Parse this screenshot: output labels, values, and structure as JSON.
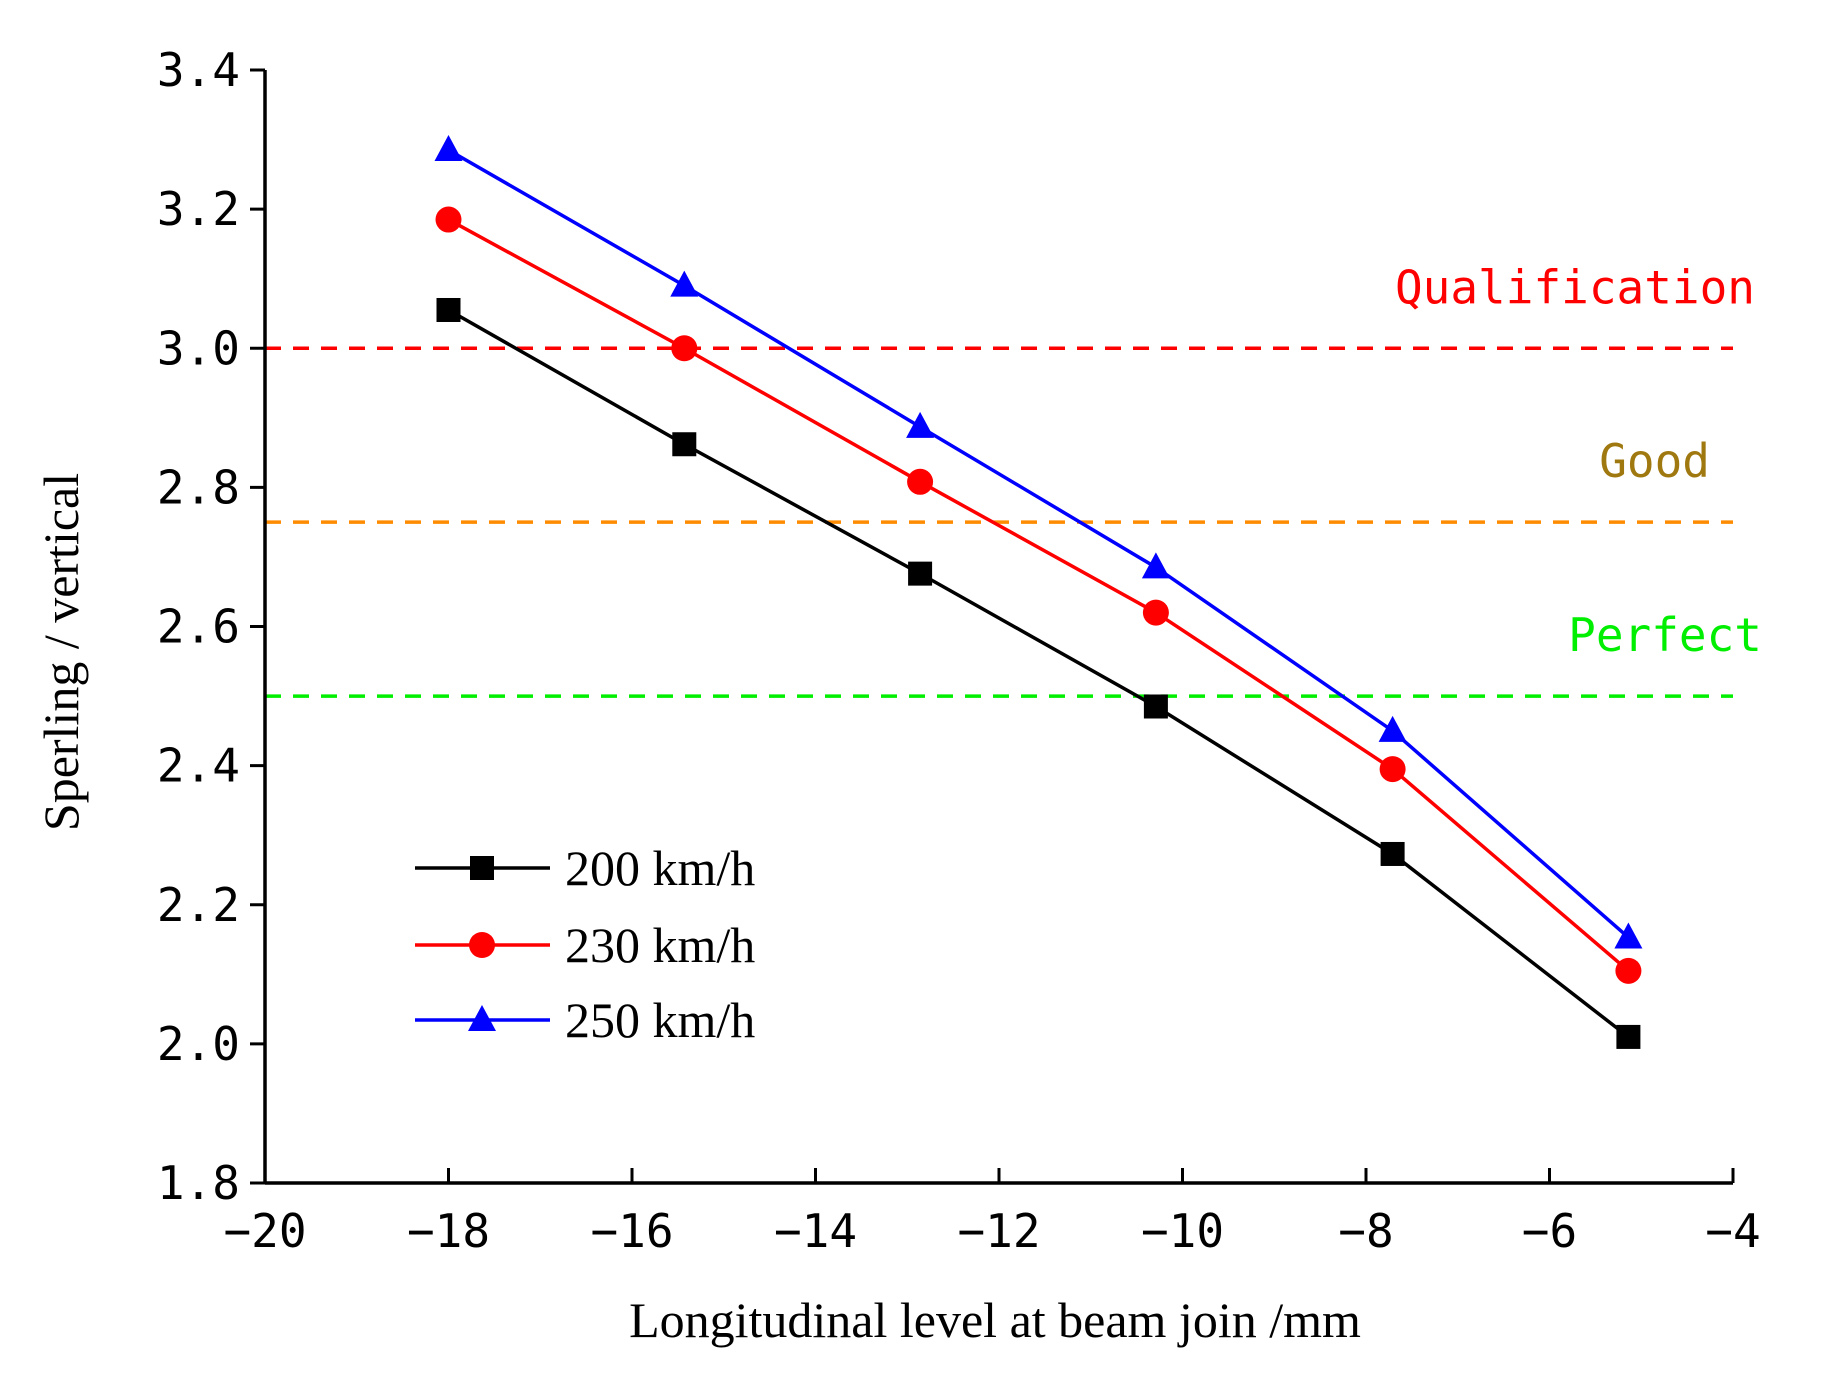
{
  "chart_data": {
    "type": "line",
    "xlabel": "Longitudinal level at beam join /mm",
    "ylabel": "Sperling / vertical",
    "xlim": [
      -20,
      -4
    ],
    "ylim": [
      1.8,
      3.4
    ],
    "x_ticks": [
      -20,
      -18,
      -16,
      -14,
      -12,
      -10,
      -8,
      -6,
      -4
    ],
    "x_tick_labels": [
      "−20",
      "−18",
      "−16",
      "−14",
      "−12",
      "−10",
      "−8",
      "−6",
      "−4"
    ],
    "y_ticks": [
      1.8,
      2.0,
      2.2,
      2.4,
      2.6,
      2.8,
      3.0,
      3.2,
      3.4
    ],
    "y_tick_labels": [
      "1.8",
      "2.0",
      "2.2",
      "2.4",
      "2.6",
      "2.8",
      "3.0",
      "3.2",
      "3.4"
    ],
    "x": [
      -18,
      -15.43,
      -12.86,
      -10.29,
      -7.71,
      -5.14
    ],
    "series": [
      {
        "name": "200 km/h",
        "color": "#000000",
        "marker": "square",
        "values": [
          3.055,
          2.862,
          2.676,
          2.485,
          2.273,
          2.01
        ]
      },
      {
        "name": "230 km/h",
        "color": "#ff0000",
        "marker": "circle",
        "values": [
          3.185,
          3.0,
          2.808,
          2.62,
          2.395,
          2.105
        ]
      },
      {
        "name": "250 km/h",
        "color": "#0000ff",
        "marker": "triangle",
        "values": [
          3.285,
          3.09,
          2.887,
          2.685,
          2.45,
          2.153
        ]
      }
    ],
    "reference_lines": [
      {
        "label": "Qualification",
        "value": 3.0,
        "color": "#ff0000",
        "text_color": "#ff0000"
      },
      {
        "label": "Good",
        "value": 2.75,
        "color": "#ff8c00",
        "text_color": "#a07810"
      },
      {
        "label": "Perfect",
        "value": 2.5,
        "color": "#00ee00",
        "text_color": "#00ee00"
      }
    ],
    "legend_location": "lower-left",
    "grid": false
  }
}
